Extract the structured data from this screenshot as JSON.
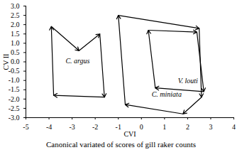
{
  "chart_data": {
    "type": "polygon",
    "caption": "Canonical variated of scores of gill raker counts",
    "x_label": "CVI",
    "y_label": "CV II",
    "xlim": [
      -5,
      4
    ],
    "xticks": [
      -5,
      -4,
      -3,
      -2,
      -1,
      0,
      1,
      2,
      3,
      4
    ],
    "ylim": [
      -3,
      3
    ],
    "yticks": [
      {
        "value": 3,
        "label": "3.0"
      },
      2.5,
      {
        "value": 2,
        "label": "2.0"
      },
      1.5,
      {
        "value": 1,
        "label": "1.0"
      },
      0.5,
      {
        "value": 0,
        "label": "0.0"
      },
      -0.5,
      {
        "value": -1,
        "label": "-1.0"
      },
      -1.5,
      {
        "value": -2,
        "label": "-2.0"
      },
      -2.5,
      {
        "value": -3,
        "label": "-3.0"
      }
    ],
    "series": [
      {
        "name": "C. argus",
        "color": "#000000",
        "line_style": "dotted",
        "marker": "arrow",
        "x": [
          -3.9,
          -2.7,
          -1.8,
          -1.6,
          -3.8
        ],
        "values": [
          1.9,
          0.6,
          1.5,
          -1.9,
          -1.8
        ]
      },
      {
        "name": "V. louti",
        "color": "#000000",
        "line_style": "dotted",
        "marker": "arrow",
        "x": [
          0.3,
          2.4,
          2.7,
          0.6
        ],
        "values": [
          1.7,
          1.6,
          -1.6,
          -1.4
        ]
      },
      {
        "name": "C. miniata",
        "color": "#000000",
        "line_style": "solid",
        "marker": "arrow",
        "x": [
          -1.0,
          2.5,
          2.6,
          1.8,
          -0.7
        ],
        "values": [
          2.5,
          1.8,
          -1.9,
          -2.8,
          -2.3
        ]
      }
    ]
  }
}
